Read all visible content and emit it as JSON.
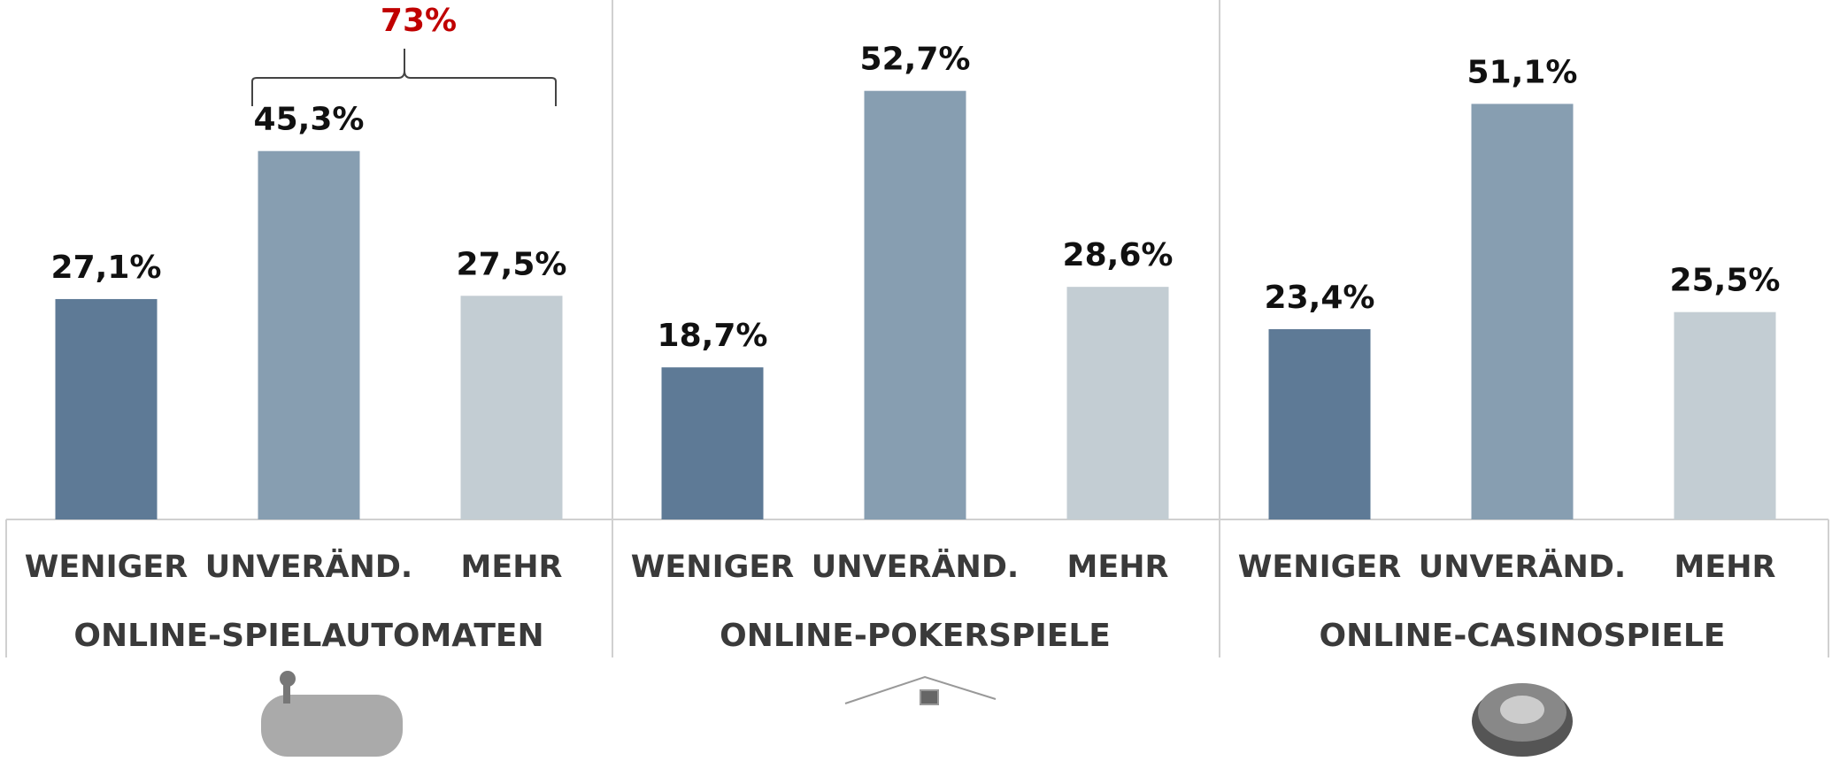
{
  "chart_data": [
    {
      "type": "bar",
      "title": "ONLINE-SPIELAUTOMATEN",
      "categories": [
        "WENIGER",
        "UNVERÄND.",
        "MEHR"
      ],
      "values": [
        27.1,
        45.3,
        27.5
      ],
      "value_labels": [
        "27,1%",
        "45,3%",
        "27,5%"
      ],
      "colors": [
        "#5e7a96",
        "#879eb1",
        "#c3cdd3"
      ],
      "annotation": "73%"
    },
    {
      "type": "bar",
      "title": "ONLINE-POKERSPIELE",
      "categories": [
        "WENIGER",
        "UNVERÄND.",
        "MEHR"
      ],
      "values": [
        18.7,
        52.7,
        28.6
      ],
      "value_labels": [
        "18,7%",
        "52,7%",
        "28,6%"
      ],
      "colors": [
        "#5e7a96",
        "#879eb1",
        "#c3cdd3"
      ]
    },
    {
      "type": "bar",
      "title": "ONLINE-CASINOSPIELE",
      "categories": [
        "WENIGER",
        "UNVERÄND.",
        "MEHR"
      ],
      "values": [
        23.4,
        51.1,
        25.5
      ],
      "value_labels": [
        "23,4%",
        "51,1%",
        "25,5%"
      ],
      "colors": [
        "#5e7a96",
        "#879eb1",
        "#c3cdd3"
      ]
    }
  ]
}
